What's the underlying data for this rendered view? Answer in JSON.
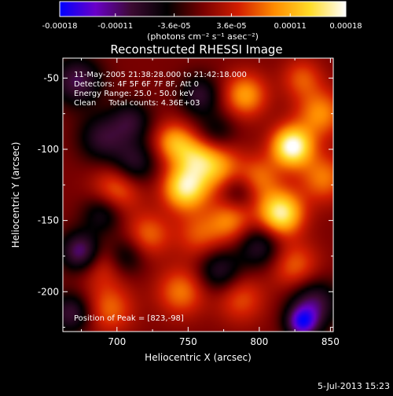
{
  "chart_data": {
    "type": "heatmap",
    "title": "Reconstructed RHESSI Image",
    "xlabel": "Heliocentric X (arcsec)",
    "ylabel": "Heliocentric Y (arcsec)",
    "xlim": [
      662,
      852
    ],
    "ylim": [
      -228,
      -36
    ],
    "x_ticks": [
      700,
      750,
      800,
      850
    ],
    "y_ticks": [
      -50,
      -100,
      -150,
      -200
    ],
    "colorbar": {
      "ticks": [
        "-0.00018",
        "-0.00011",
        "-3.6e-05",
        "3.6e-05",
        "0.00011",
        "0.00018"
      ],
      "range": [
        -0.00018,
        0.00018
      ],
      "unit_label": "(photons cm⁻² s⁻¹ asec⁻²)",
      "colormap": [
        "#0000ff",
        "#6a00c8",
        "#3c0a32",
        "#000000",
        "#780000",
        "#d21e00",
        "#ff8c00",
        "#ffdc28",
        "#ffffff"
      ]
    },
    "annotations": [
      "11-May-2005 21:38:28.000 to 21:42:18.000",
      "Detectors: 4F 5F 6F 7F 8F, Att 0",
      "Energy Range: 25.0 - 50.0 keV",
      "Clean     Total counts: 4.36E+03"
    ],
    "peak_label": "Position of Peak = [823,-98]",
    "peak": [
      823,
      -98
    ],
    "blobs": [
      {
        "x": 823,
        "y": -98,
        "amp": 1.0,
        "r": 10
      },
      {
        "x": 815,
        "y": -145,
        "amp": 0.9,
        "r": 11
      },
      {
        "x": 748,
        "y": -127,
        "amp": 0.85,
        "r": 11
      },
      {
        "x": 770,
        "y": -112,
        "amp": 0.55,
        "r": 12
      },
      {
        "x": 790,
        "y": -62,
        "amp": 0.55,
        "r": 11
      },
      {
        "x": 843,
        "y": -75,
        "amp": 0.5,
        "r": 12
      },
      {
        "x": 740,
        "y": -95,
        "amp": 0.55,
        "r": 10
      },
      {
        "x": 755,
        "y": -105,
        "amp": 0.45,
        "r": 10
      },
      {
        "x": 845,
        "y": -120,
        "amp": 0.45,
        "r": 12
      },
      {
        "x": 825,
        "y": -182,
        "amp": 0.4,
        "r": 12
      },
      {
        "x": 780,
        "y": -150,
        "amp": 0.45,
        "r": 11
      },
      {
        "x": 758,
        "y": -160,
        "amp": 0.35,
        "r": 12
      },
      {
        "x": 700,
        "y": -128,
        "amp": 0.45,
        "r": 12
      },
      {
        "x": 722,
        "y": -160,
        "amp": 0.4,
        "r": 11
      },
      {
        "x": 690,
        "y": -180,
        "amp": 0.35,
        "r": 12
      },
      {
        "x": 695,
        "y": -212,
        "amp": 0.4,
        "r": 12
      },
      {
        "x": 745,
        "y": -200,
        "amp": 0.45,
        "r": 12
      },
      {
        "x": 787,
        "y": -205,
        "amp": 0.35,
        "r": 12
      },
      {
        "x": 800,
        "y": -120,
        "amp": 0.4,
        "r": 11
      },
      {
        "x": 830,
        "y": -50,
        "amp": 0.35,
        "r": 10
      },
      {
        "x": 690,
        "y": -92,
        "amp": -0.45,
        "r": 12
      },
      {
        "x": 712,
        "y": -110,
        "amp": -0.45,
        "r": 11
      },
      {
        "x": 672,
        "y": -52,
        "amp": -0.55,
        "r": 12
      },
      {
        "x": 758,
        "y": -62,
        "amp": -0.45,
        "r": 10
      },
      {
        "x": 690,
        "y": -145,
        "amp": -0.4,
        "r": 10
      },
      {
        "x": 675,
        "y": -172,
        "amp": -0.7,
        "r": 10
      },
      {
        "x": 705,
        "y": -175,
        "amp": -0.4,
        "r": 10
      },
      {
        "x": 800,
        "y": -168,
        "amp": -0.45,
        "r": 11
      },
      {
        "x": 772,
        "y": -185,
        "amp": -0.45,
        "r": 11
      },
      {
        "x": 838,
        "y": -208,
        "amp": -0.55,
        "r": 12
      },
      {
        "x": 830,
        "y": -222,
        "amp": -0.75,
        "r": 8
      },
      {
        "x": 710,
        "y": -80,
        "amp": -0.4,
        "r": 10
      },
      {
        "x": 770,
        "y": -88,
        "amp": -0.3,
        "r": 10
      },
      {
        "x": 785,
        "y": -130,
        "amp": -0.3,
        "r": 9
      },
      {
        "x": 668,
        "y": -215,
        "amp": -0.5,
        "r": 10
      }
    ]
  },
  "footer_timestamp": "5-Jul-2013 15:23"
}
